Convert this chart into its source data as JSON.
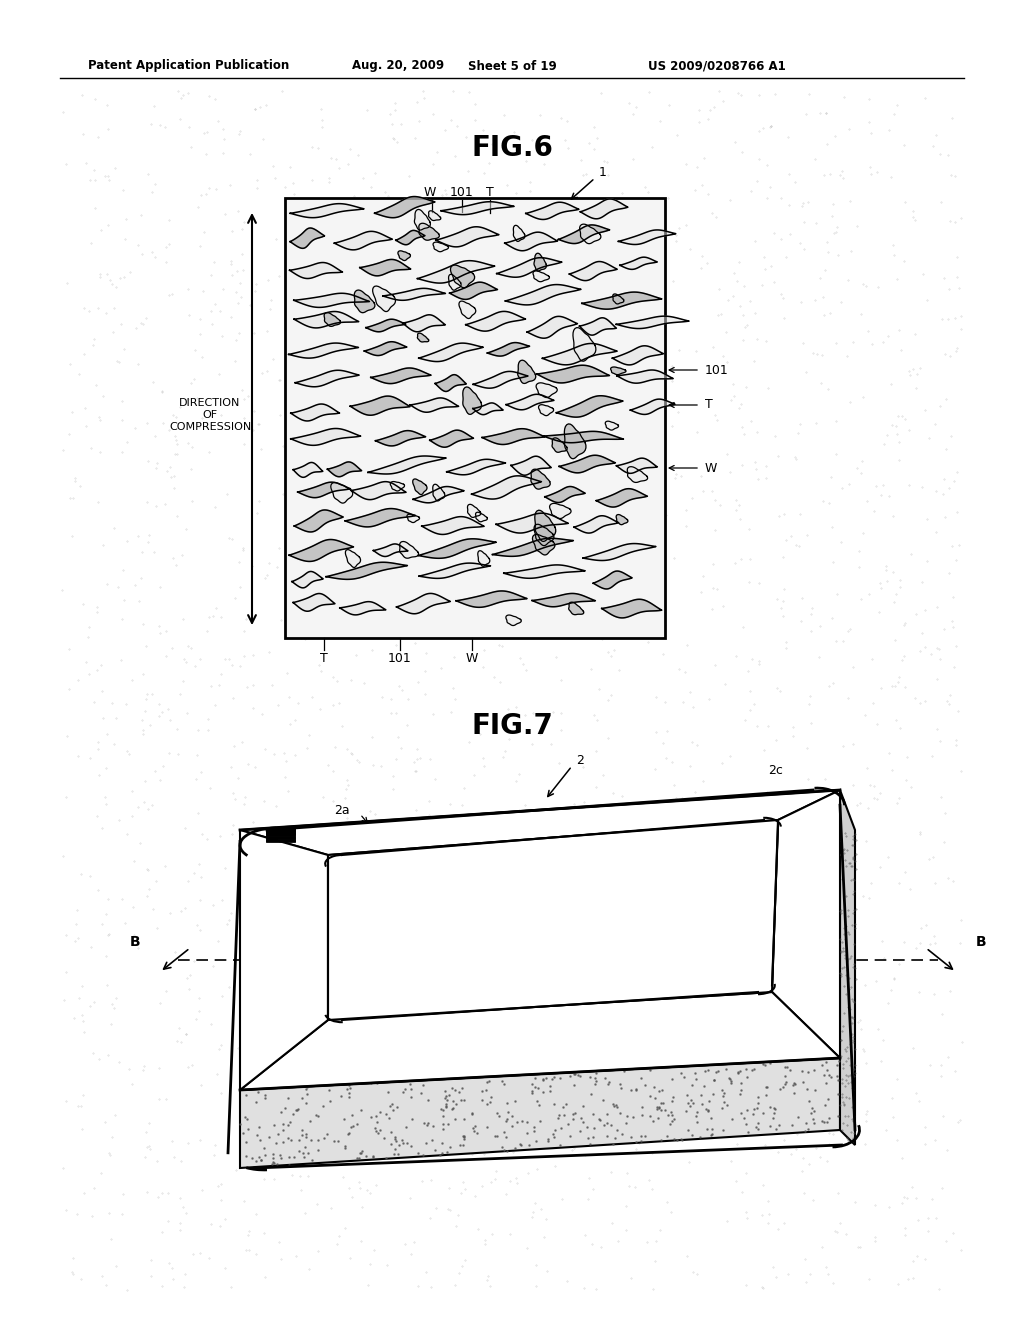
{
  "bg_color": "#ffffff",
  "header_text": "Patent Application Publication",
  "header_date": "Aug. 20, 2009",
  "header_sheet": "Sheet 5 of 19",
  "header_patent": "US 2009/0208766 A1",
  "fig6_title": "FIG.6",
  "fig7_title": "FIG.7",
  "label_color": "#1a1a1a",
  "line_color": "#000000"
}
